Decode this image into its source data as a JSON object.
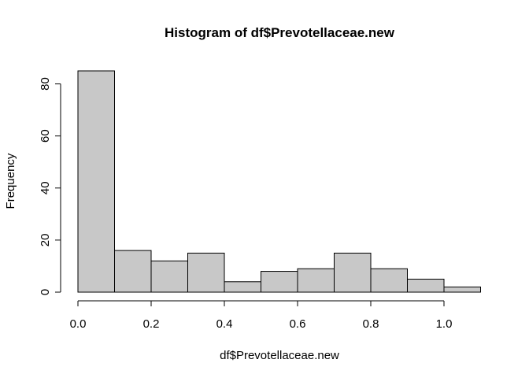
{
  "chart_data": {
    "type": "bar",
    "title": "Histogram of df$Prevotellaceae.new",
    "xlabel": "df$Prevotellaceae.new",
    "ylabel": "Frequency",
    "bins": [
      {
        "start": 0.0,
        "end": 0.1,
        "count": 85
      },
      {
        "start": 0.1,
        "end": 0.2,
        "count": 16
      },
      {
        "start": 0.2,
        "end": 0.3,
        "count": 12
      },
      {
        "start": 0.3,
        "end": 0.4,
        "count": 15
      },
      {
        "start": 0.4,
        "end": 0.5,
        "count": 4
      },
      {
        "start": 0.5,
        "end": 0.6,
        "count": 8
      },
      {
        "start": 0.6,
        "end": 0.7,
        "count": 9
      },
      {
        "start": 0.7,
        "end": 0.8,
        "count": 15
      },
      {
        "start": 0.8,
        "end": 0.9,
        "count": 9
      },
      {
        "start": 0.9,
        "end": 1.0,
        "count": 5
      },
      {
        "start": 1.0,
        "end": 1.1,
        "count": 2
      }
    ],
    "xticks": [
      "0.0",
      "0.2",
      "0.4",
      "0.6",
      "0.8",
      "1.0"
    ],
    "yticks": [
      "0",
      "20",
      "40",
      "60",
      "80"
    ],
    "xlim": [
      0,
      1.1
    ],
    "ylim": [
      0,
      85
    ],
    "grid": false,
    "bar_color": "#c8c8c8",
    "edge_color": "#000000"
  }
}
